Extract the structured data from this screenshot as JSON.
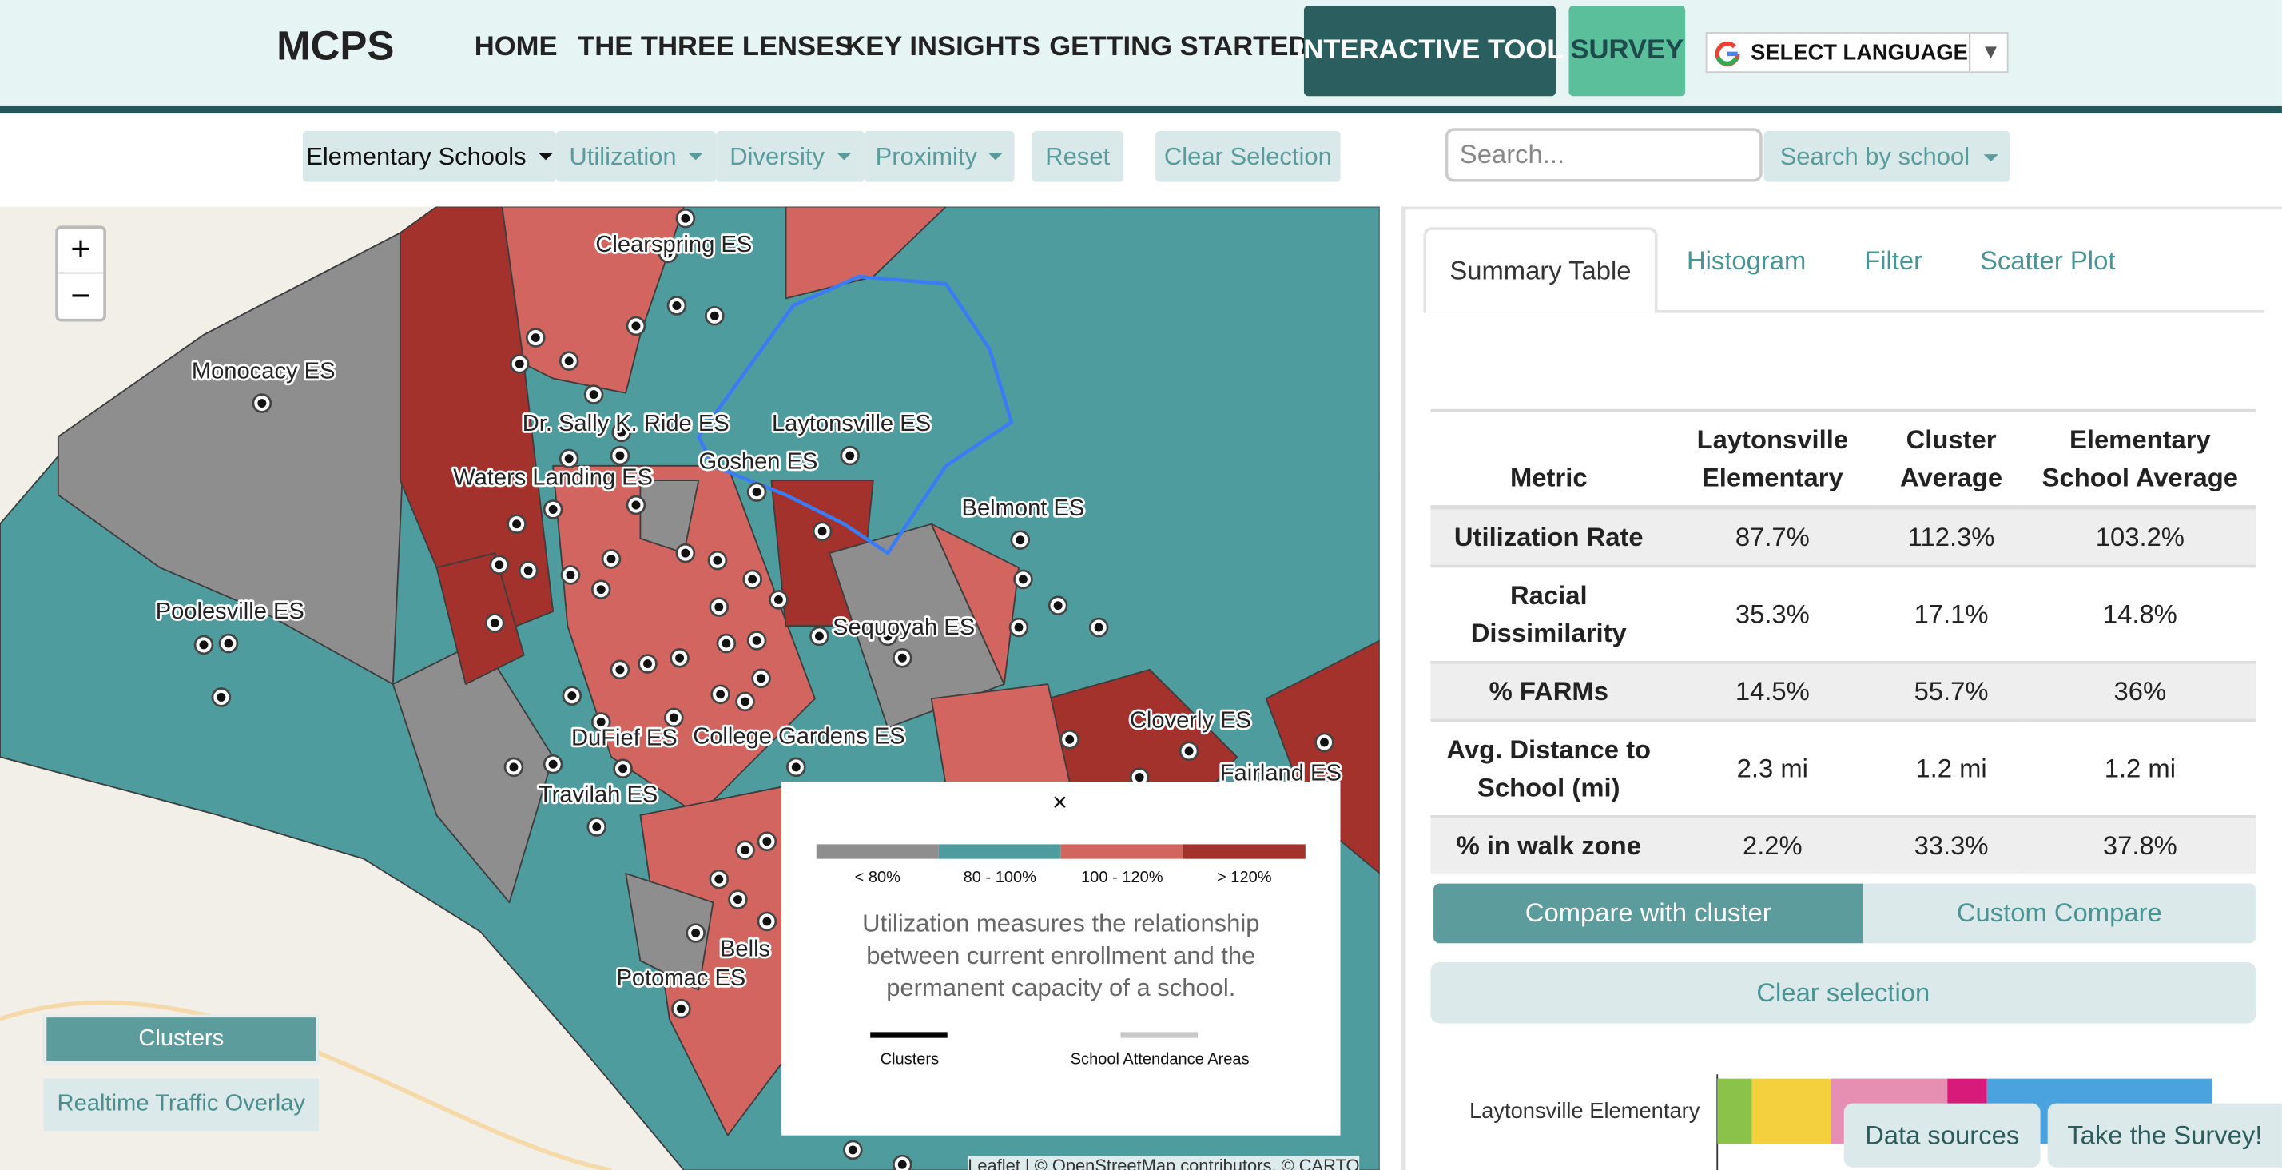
{
  "header": {
    "brand": "MCPS",
    "nav": [
      "HOME",
      "THE THREE LENSES",
      "KEY INSIGHTS",
      "GETTING STARTED",
      "INTERACTIVE TOOL",
      "SURVEY"
    ],
    "language": "SELECT LANGUAGE"
  },
  "toolbar": {
    "dropdowns": [
      "Elementary Schools",
      "Utilization",
      "Diversity",
      "Proximity"
    ],
    "buttons": [
      "Reset",
      "Clear Selection"
    ],
    "search_placeholder": "Search...",
    "search_by": "Search by school"
  },
  "map": {
    "zoom": [
      "+",
      "−"
    ],
    "labels": [
      "Clearspring ES",
      "Monocacy ES",
      "Laytonsville ES",
      "Dr. Sally K. Ride ES",
      "Waters Landing ES",
      "Goshen ES",
      "Belmont ES",
      "Poolesville ES",
      "Sequoyah ES",
      "Cloverly ES",
      "DuFief ES",
      "College Gardens ES",
      "Fairland ES",
      "Travilah ES",
      "Bells",
      "Potomac ES"
    ],
    "legend": {
      "close": "×",
      "bins": [
        {
          "label": "< 80%",
          "color": "#8e8e8e"
        },
        {
          "label": "80 - 100%",
          "color": "#4f9c9e"
        },
        {
          "label": "100 - 120%",
          "color": "#d2655f"
        },
        {
          "label": "> 120%",
          "color": "#a3312c"
        }
      ],
      "description": "Utilization measures the relationship between current enrollment and the permanent capacity of a school.",
      "line_keys": [
        "Clusters",
        "School Attendance Areas"
      ]
    },
    "layer_buttons": [
      "Clusters",
      "Realtime Traffic Overlay"
    ],
    "attribution": "Leaflet | © OpenStreetMap contributors, © CARTO"
  },
  "panel": {
    "tabs": [
      "Summary Table",
      "Histogram",
      "Filter",
      "Scatter Plot"
    ],
    "table": {
      "columns": [
        "Metric",
        "Laytonsville Elementary",
        "Cluster Average",
        "Elementary School Average"
      ],
      "rows": [
        [
          "Utilization Rate",
          "87.7%",
          "112.3%",
          "103.2%"
        ],
        [
          "Racial Dissimilarity",
          "35.3%",
          "17.1%",
          "14.8%"
        ],
        [
          "% FARMs",
          "14.5%",
          "55.7%",
          "36%"
        ],
        [
          "Avg. Distance to School (mi)",
          "2.3 mi",
          "1.2 mi",
          "1.2 mi"
        ],
        [
          "% in walk zone",
          "2.2%",
          "33.3%",
          "37.8%"
        ]
      ]
    },
    "compare_buttons": [
      "Compare with cluster",
      "Custom Compare"
    ],
    "clear": "Clear selection",
    "bar_chart": {
      "type": "stacked-bar",
      "category": "Laytonsville Elementary",
      "xlim": [
        0,
        100
      ],
      "segments": [
        {
          "color": "#8bc34a",
          "value": 7
        },
        {
          "color": "#f4d03f",
          "value": 16
        },
        {
          "color": "#e78fb3",
          "value": 23.5
        },
        {
          "color": "#d81b7a",
          "value": 8
        },
        {
          "color": "#4aa3df",
          "value": 45.5
        }
      ]
    }
  },
  "floating": [
    "Data sources",
    "Take the Survey!"
  ]
}
